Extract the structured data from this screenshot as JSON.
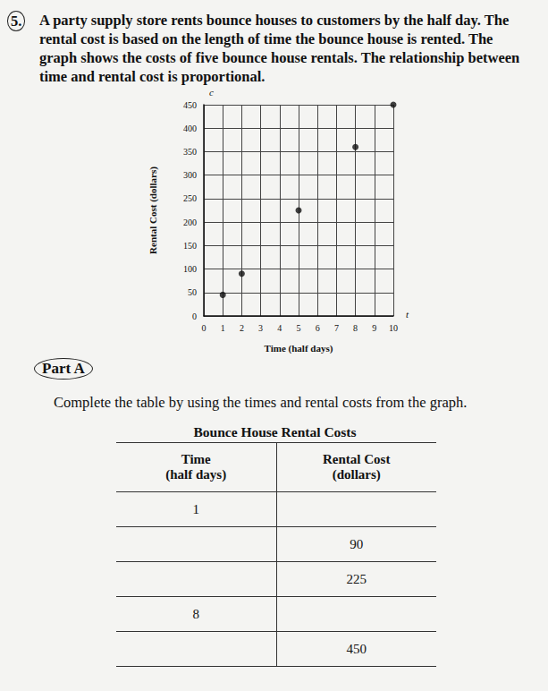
{
  "problem": {
    "number": "5.",
    "text": "A party supply store rents bounce houses to customers by the half day. The rental cost is based on the length of time the bounce house is rented. The graph shows the costs of five bounce house rentals. The relationship between time and rental cost is proportional."
  },
  "chart_data": {
    "type": "scatter",
    "xlabel": "Time (half days)",
    "ylabel": "Rental Cost (dollars)",
    "x_variable": "t",
    "y_variable": "c",
    "x": [
      1,
      2,
      5,
      8,
      10
    ],
    "values": [
      45,
      90,
      225,
      360,
      450
    ],
    "color": "#111111",
    "marker": "circle",
    "xlim": [
      0,
      10
    ],
    "xticks": [
      0,
      1,
      2,
      3,
      4,
      5,
      6,
      7,
      8,
      9,
      10
    ],
    "ylim": [
      0,
      450
    ],
    "yticks": [
      0,
      50,
      100,
      150,
      200,
      250,
      300,
      350,
      400,
      450
    ],
    "grid": true
  },
  "part_a": {
    "heading": "Part A",
    "instruction": "Complete the table by using the times and rental costs from the graph."
  },
  "table": {
    "title": "Bounce House Rental Costs",
    "header": [
      [
        "Time",
        "(half days)"
      ],
      [
        "Rental Cost",
        "(dollars)"
      ]
    ],
    "rows": [
      [
        1,
        null
      ],
      [
        null,
        90
      ],
      [
        null,
        225
      ],
      [
        8,
        null
      ],
      [
        null,
        450
      ]
    ]
  }
}
